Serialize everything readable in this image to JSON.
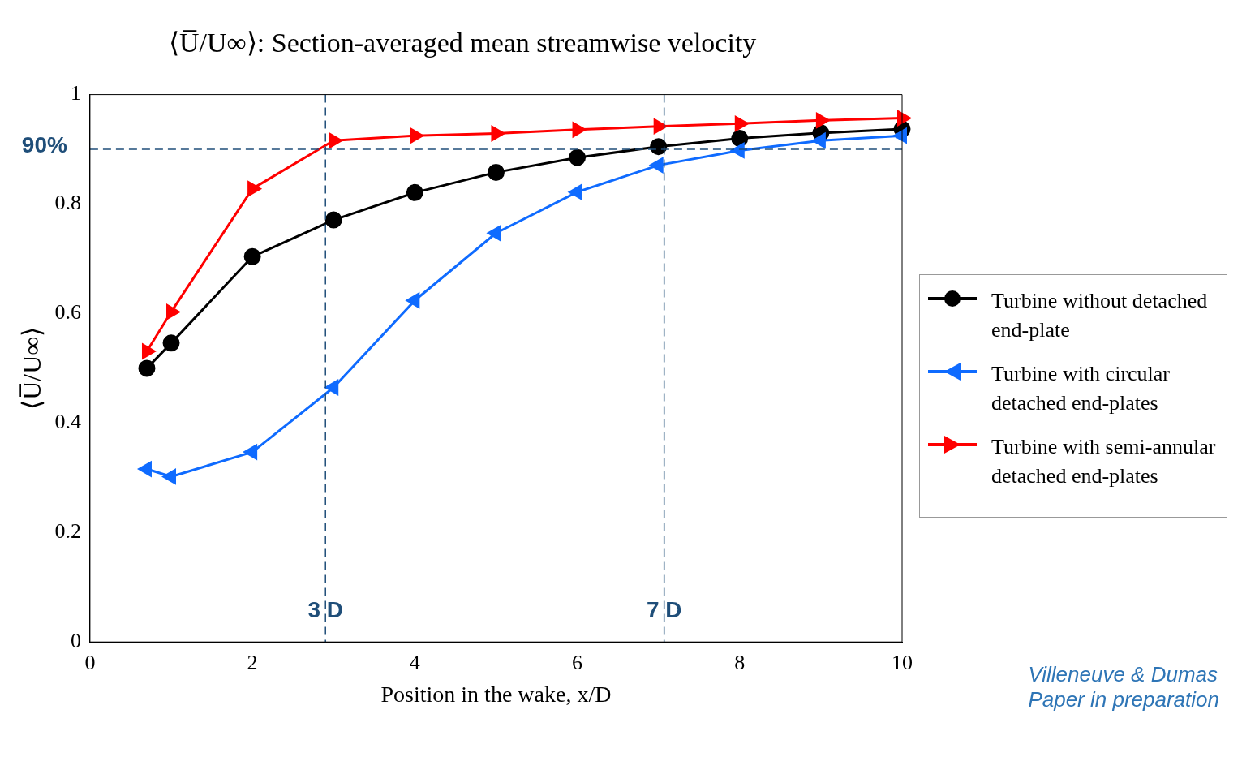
{
  "chart_data": {
    "type": "line",
    "title": "⟨U̅/U∞⟩: Section-averaged mean streamwise velocity",
    "xlabel": "Position in the wake, x/D",
    "ylabel": "⟨U̅/U∞⟩",
    "xlim": [
      0,
      10
    ],
    "xticks": [
      0,
      2,
      4,
      6,
      8,
      10
    ],
    "ylim": [
      0,
      1
    ],
    "yticks": [
      0,
      0.2,
      0.4,
      0.6,
      0.8,
      1
    ],
    "grid": false,
    "legend": "right",
    "line_style": "solid",
    "series": [
      {
        "name": "Turbine without detached end-plate",
        "color": "#000000",
        "marker": "circle",
        "x": [
          0.7,
          1,
          2,
          3,
          4,
          5,
          6,
          7,
          8,
          9,
          10
        ],
        "values": [
          0.5,
          0.546,
          0.704,
          0.771,
          0.821,
          0.858,
          0.885,
          0.905,
          0.92,
          0.93,
          0.937
        ]
      },
      {
        "name": "Turbine with circular detached end-plates",
        "color": "#0f6bff",
        "marker": "triangle",
        "x": [
          0.7,
          1,
          2,
          3,
          4,
          5,
          6,
          7,
          8,
          9,
          10
        ],
        "values": [
          0.316,
          0.302,
          0.347,
          0.465,
          0.624,
          0.747,
          0.822,
          0.871,
          0.898,
          0.916,
          0.925
        ]
      },
      {
        "name": "Turbine with semi-annular detached end-plates",
        "color": "#ff0000",
        "marker": "triangle",
        "x": [
          0.7,
          1,
          2,
          3,
          4,
          5,
          6,
          7,
          8,
          9,
          10
        ],
        "values": [
          0.531,
          0.603,
          0.828,
          0.916,
          0.925,
          0.929,
          0.936,
          0.942,
          0.947,
          0.953,
          0.957
        ]
      }
    ],
    "ref_lines": [
      {
        "axis": "y",
        "value": 0.9,
        "label": "90%",
        "color": "#1f4e79",
        "line_style": "dashed"
      },
      {
        "axis": "x",
        "value": 2.9,
        "label": "3 D",
        "color": "#1f4e79",
        "line_style": "dashed"
      },
      {
        "axis": "x",
        "value": 7.07,
        "label": "7 D",
        "color": "#1f4e79",
        "line_style": "dashed"
      }
    ],
    "annotations": [
      "Villeneuve & Dumas",
      "Paper in preparation"
    ]
  }
}
